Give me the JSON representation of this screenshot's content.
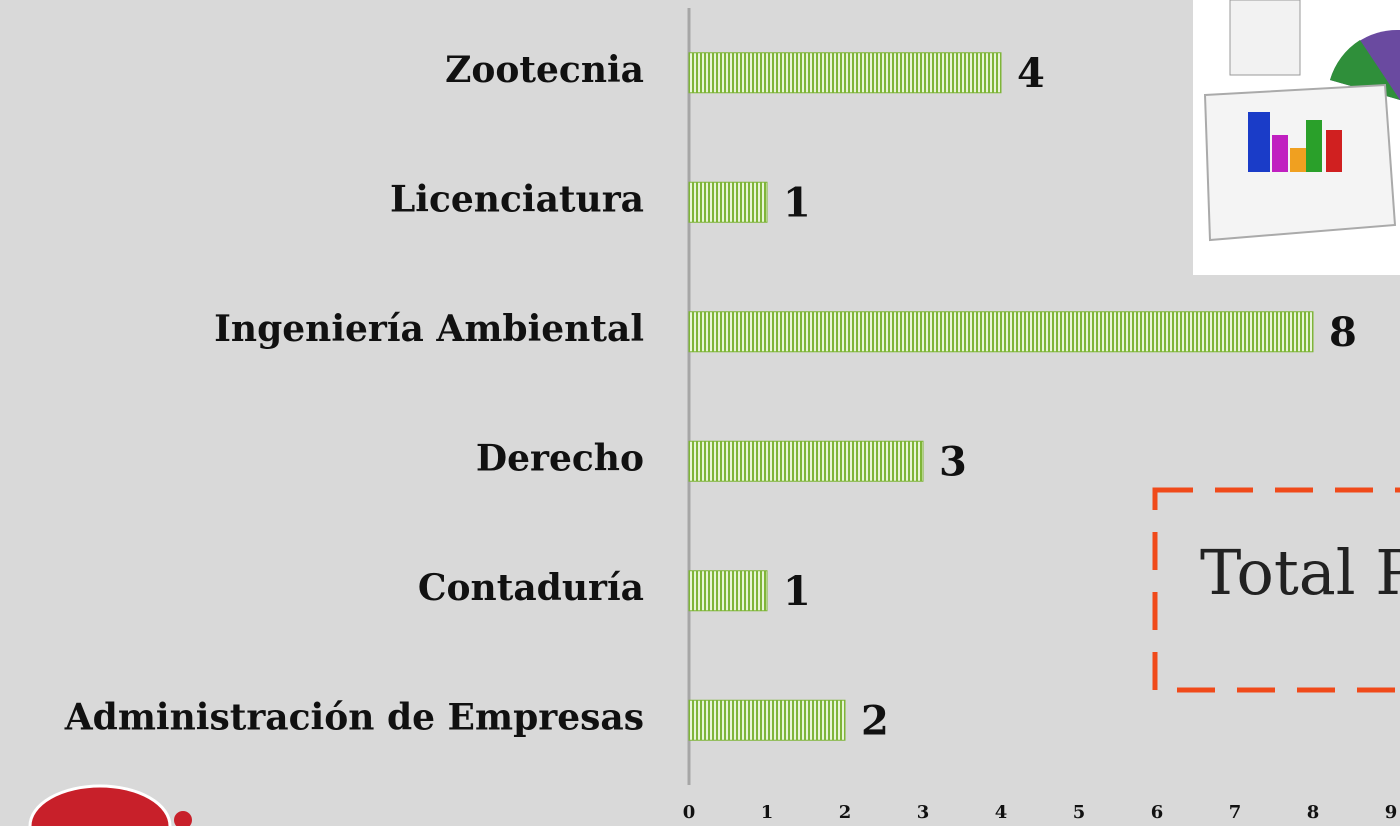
{
  "chart_data": {
    "type": "barh",
    "categories": [
      "Zootecnia",
      "Licenciatura",
      "Ingeniería Ambiental",
      "Derecho",
      "Contaduría",
      "Administración de Empresas"
    ],
    "values": [
      4,
      1,
      8,
      3,
      1,
      2
    ],
    "color": "#7fb539",
    "xlim": [
      0,
      9
    ],
    "xticks": [
      0,
      1,
      2,
      3,
      4,
      5,
      6,
      7,
      8,
      9
    ],
    "annotation": "Total P"
  }
}
